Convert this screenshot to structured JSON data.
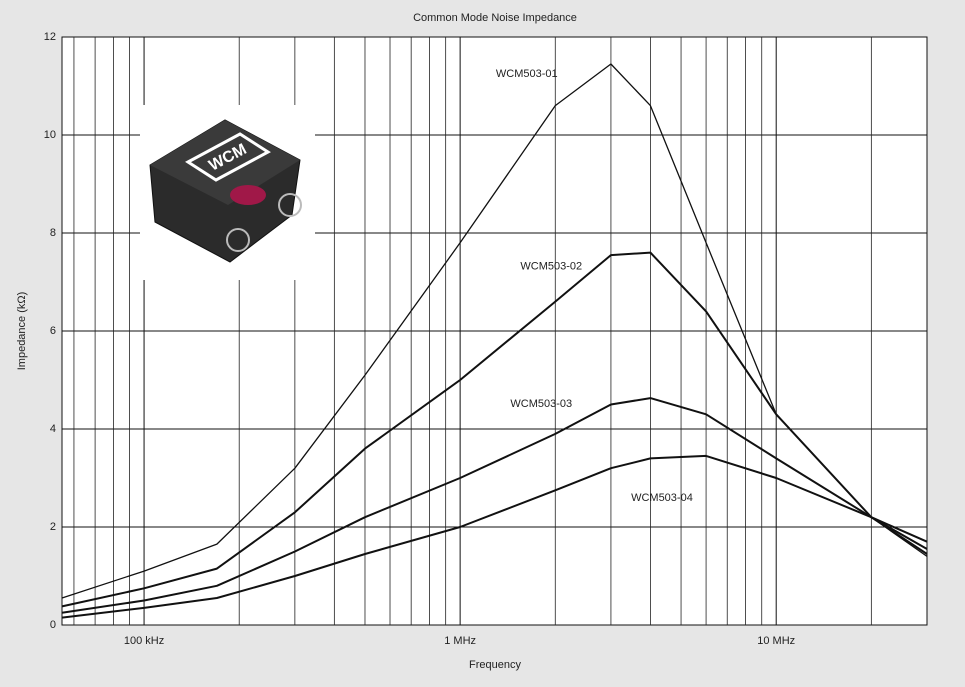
{
  "chart_data": {
    "type": "line",
    "title": "Common Mode Noise Impedance",
    "x_label": "Frequency",
    "y_label": "Impedance (kΩ)",
    "x_scale": "log",
    "grid": true,
    "logo_text": "WCM",
    "x": [
      55000,
      100000,
      170000,
      300000,
      500000,
      1000000,
      2000000,
      3000000,
      4000000,
      6000000,
      10000000,
      20000000,
      30000000
    ],
    "series": [
      {
        "name": "WCM503-01",
        "color": "#111111",
        "values": [
          0.55,
          1.1,
          1.65,
          3.2,
          5.1,
          7.8,
          10.6,
          11.45,
          10.6,
          7.8,
          4.3,
          2.2,
          1.4
        ]
      },
      {
        "name": "WCM503-02",
        "color": "#111111",
        "values": [
          0.38,
          0.75,
          1.15,
          2.3,
          3.6,
          5.0,
          6.6,
          7.55,
          7.6,
          6.4,
          4.3,
          2.2,
          1.45
        ]
      },
      {
        "name": "WCM503-03",
        "color": "#111111",
        "values": [
          0.25,
          0.5,
          0.8,
          1.5,
          2.2,
          3.0,
          3.9,
          4.5,
          4.63,
          4.3,
          3.4,
          2.2,
          1.55
        ]
      },
      {
        "name": "WCM503-04",
        "color": "#111111",
        "values": [
          0.15,
          0.35,
          0.55,
          1.0,
          1.45,
          2.0,
          2.75,
          3.2,
          3.4,
          3.45,
          3.0,
          2.2,
          1.7
        ]
      }
    ],
    "xlim": [
      55000,
      30000000
    ],
    "xticks": [
      {
        "value": 100000,
        "label": "100 kHz"
      },
      {
        "value": 1000000,
        "label": "1 MHz"
      },
      {
        "value": 10000000,
        "label": "10 MHz"
      }
    ],
    "x_minor_ticks": [
      60000,
      70000,
      80000,
      90000,
      200000,
      300000,
      400000,
      500000,
      600000,
      700000,
      800000,
      900000,
      2000000,
      3000000,
      4000000,
      5000000,
      6000000,
      7000000,
      8000000,
      9000000,
      20000000
    ],
    "ylim": [
      0,
      12
    ],
    "yticks": [
      0,
      2,
      4,
      6,
      8,
      10,
      12
    ]
  }
}
